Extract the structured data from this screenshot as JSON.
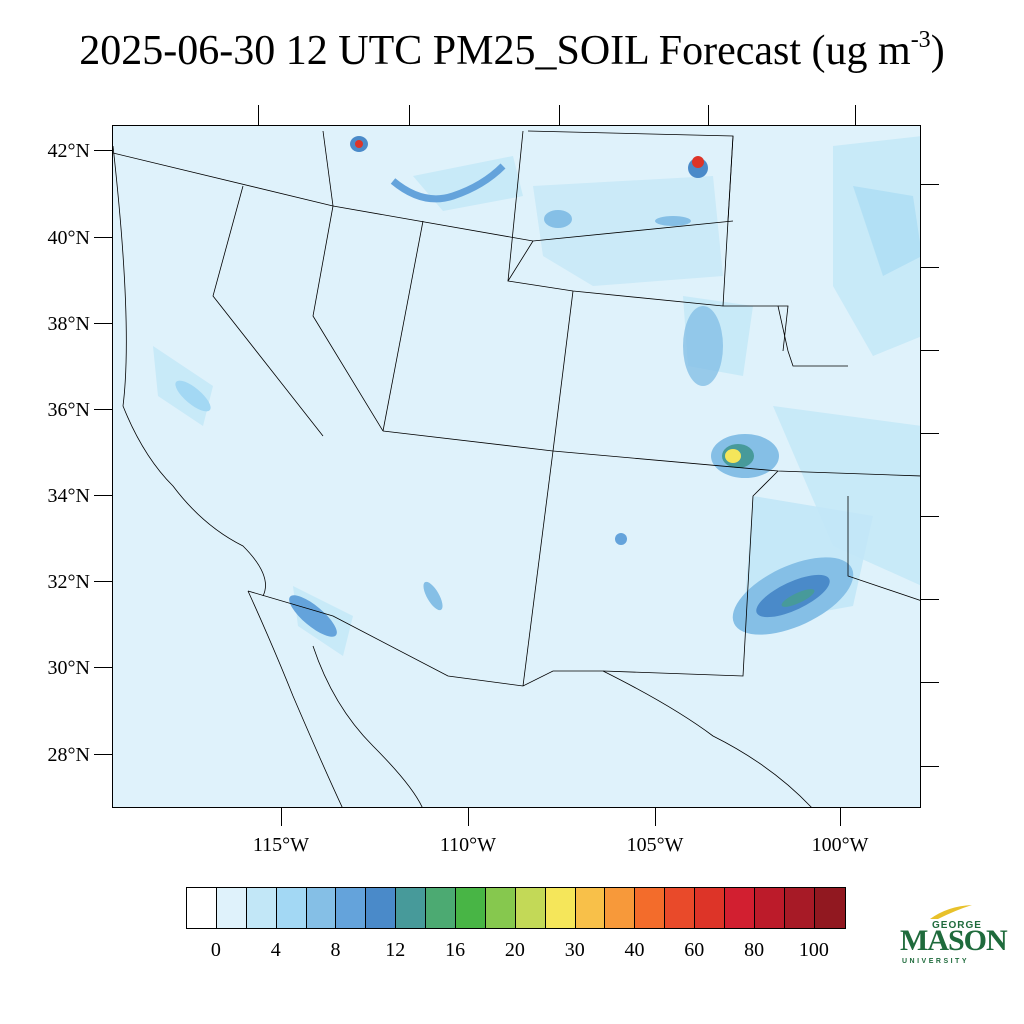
{
  "title": {
    "text": "2025-06-30 12 UTC PM25_SOIL Forecast (ug m",
    "superscript": "-3",
    "closing": ")"
  },
  "latitude_labels": [
    "42°N",
    "40°N",
    "38°N",
    "36°N",
    "34°N",
    "32°N",
    "30°N",
    "28°N"
  ],
  "longitude_labels": [
    "115°W",
    "110°W",
    "105°W",
    "100°W"
  ],
  "colorbar": {
    "labels": [
      "0",
      "4",
      "8",
      "12",
      "16",
      "20",
      "30",
      "40",
      "60",
      "80",
      "100"
    ],
    "colors": [
      "#ffffff",
      "#dff2fb",
      "#c2e7f7",
      "#a3d8f4",
      "#85bfe6",
      "#64a3db",
      "#4a8ac9",
      "#479a9a",
      "#4caa72",
      "#48b545",
      "#86c84e",
      "#c3d957",
      "#f5e65a",
      "#f8c049",
      "#f7993a",
      "#f36c2b",
      "#e94a2a",
      "#dd3428",
      "#d21f30",
      "#bc1b2a",
      "#a71a26",
      "#911820"
    ]
  },
  "logo": {
    "line1": "GEORGE",
    "line2": "MASON",
    "line3": "UNIVERSITY",
    "color": "#1f6b3c",
    "accent": "#e8c12a"
  },
  "map_background": "#dff2fb",
  "layers": {
    "background_concentration": "0-4 ug m-3",
    "hotspots_color_scale": [
      "#c2e7f7",
      "#85bfe6",
      "#4a8ac9",
      "#479a9a",
      "#f5e65a",
      "#dd3428"
    ]
  }
}
